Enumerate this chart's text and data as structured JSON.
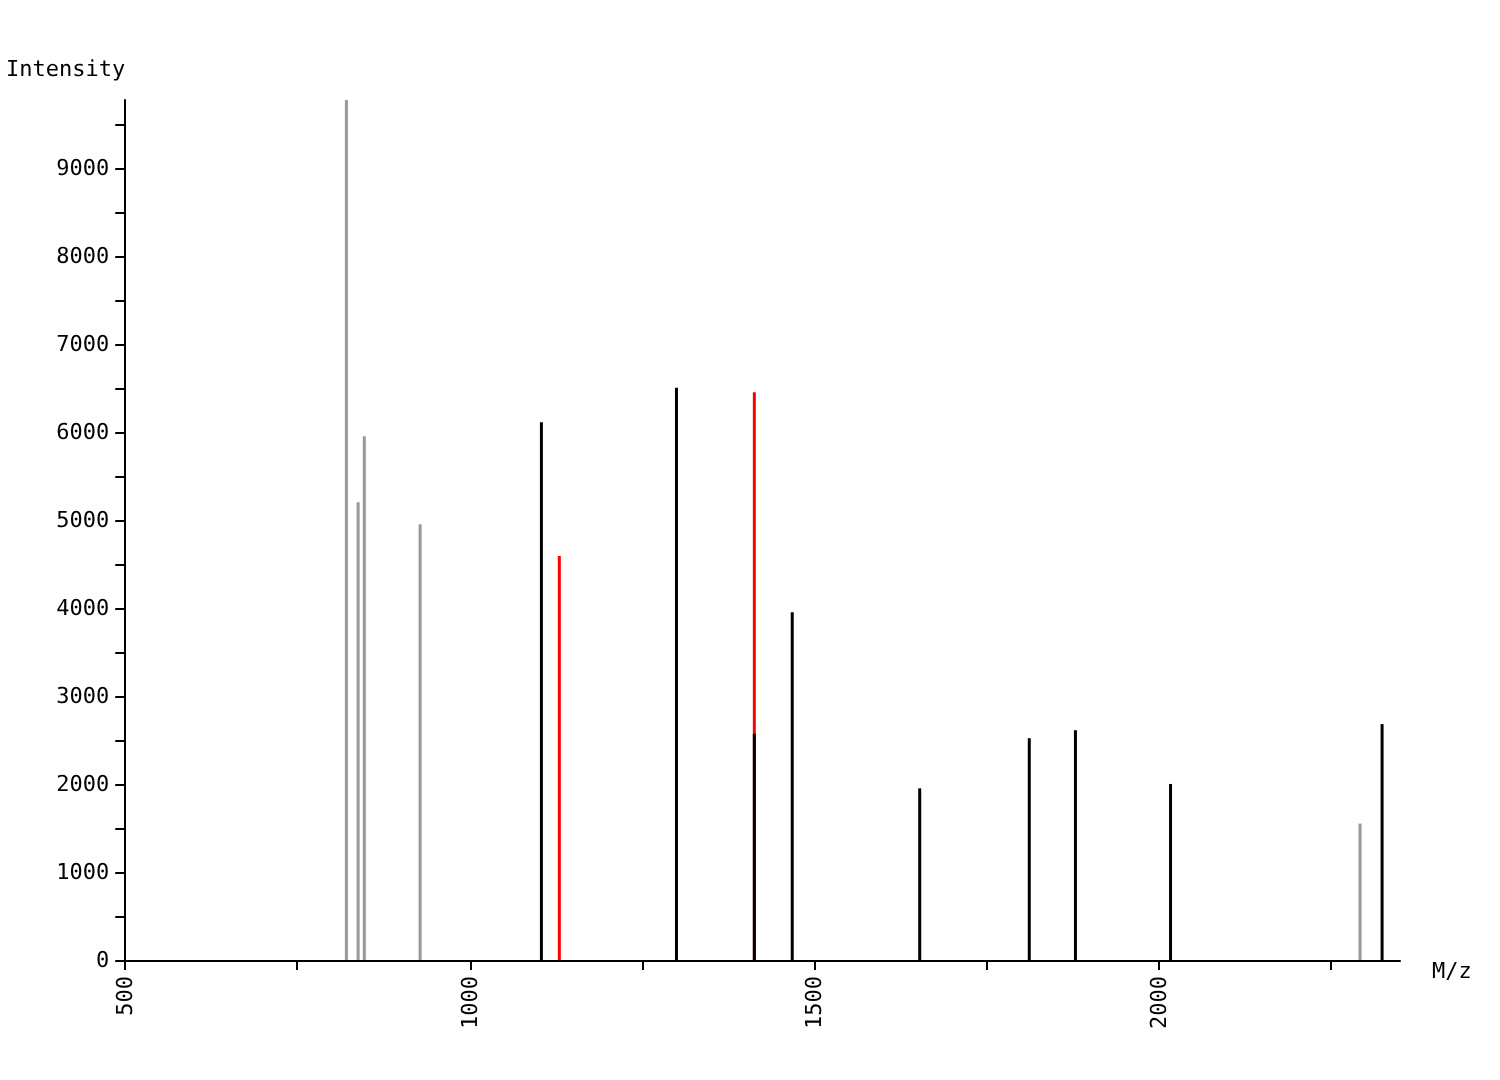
{
  "chart_data": {
    "type": "bar",
    "xlabel": "M/z",
    "ylabel": "Intensity",
    "xlim": [
      500,
      2350
    ],
    "ylim": [
      0,
      9770
    ],
    "xticks": [
      500,
      {
        "value": 750,
        "label": null
      },
      1000,
      {
        "value": 1250,
        "label": null
      },
      1500,
      {
        "value": 1750,
        "label": null
      },
      2000,
      {
        "value": 2250,
        "label": null
      }
    ],
    "yticks": [
      0,
      {
        "value": 500,
        "label": null
      },
      1000,
      {
        "value": 1500,
        "label": null
      },
      2000,
      {
        "value": 2500,
        "label": null
      },
      3000,
      {
        "value": 3500,
        "label": null
      },
      4000,
      {
        "value": 4500,
        "label": null
      },
      5000,
      {
        "value": 5500,
        "label": null
      },
      6000,
      {
        "value": 6500,
        "label": null
      },
      7000,
      {
        "value": 7500,
        "label": null
      },
      8000,
      {
        "value": 8500,
        "label": null
      },
      9000,
      {
        "value": 9500,
        "label": null
      }
    ],
    "grid": false,
    "series": [
      {
        "color": "#999999",
        "x": [
          821,
          838,
          847,
          928,
          2292
        ],
        "values": [
          9770,
          5200,
          5950,
          4950,
          1550
        ]
      },
      {
        "color": "#ff0000",
        "x": [
          1130,
          1413
        ],
        "values": [
          4590,
          6450
        ]
      },
      {
        "color": "#000000",
        "x": [
          1104,
          1300,
          1413,
          1468,
          1653,
          1812,
          1879,
          2017,
          2324
        ],
        "values": [
          6110,
          6500,
          2570,
          3950,
          1950,
          2520,
          2610,
          2000,
          2680
        ]
      }
    ]
  }
}
